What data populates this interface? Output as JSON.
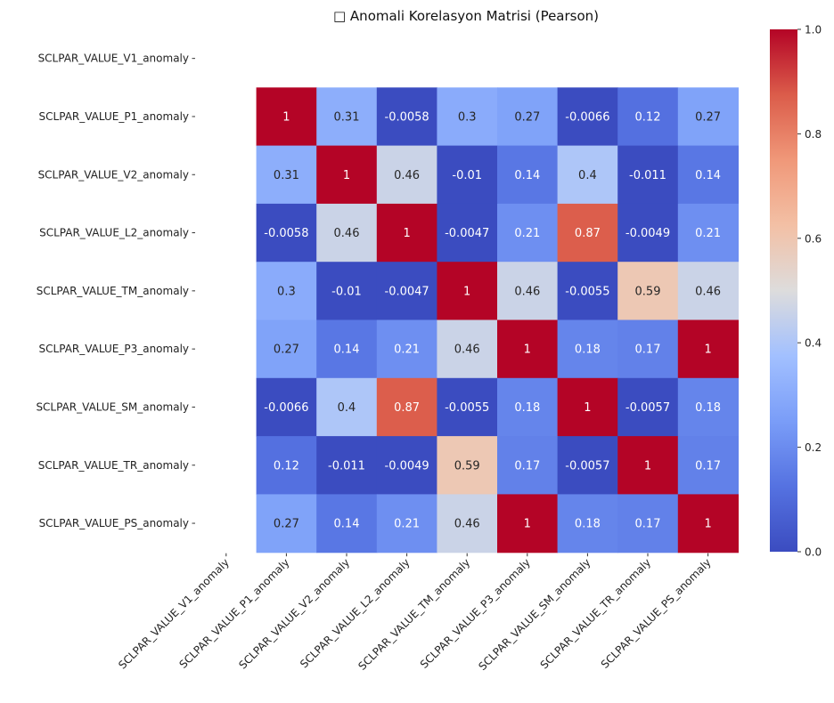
{
  "chart_data": {
    "type": "heatmap",
    "title": "□ Anomali Korelasyon Matrisi (Pearson)",
    "colormap": "coolwarm",
    "rows": [
      "SCLPAR_VALUE_V1_anomaly",
      "SCLPAR_VALUE_P1_anomaly",
      "SCLPAR_VALUE_V2_anomaly",
      "SCLPAR_VALUE_L2_anomaly",
      "SCLPAR_VALUE_TM_anomaly",
      "SCLPAR_VALUE_P3_anomaly",
      "SCLPAR_VALUE_SM_anomaly",
      "SCLPAR_VALUE_TR_anomaly",
      "SCLPAR_VALUE_PS_anomaly"
    ],
    "columns": [
      "SCLPAR_VALUE_V1_anomaly",
      "SCLPAR_VALUE_P1_anomaly",
      "SCLPAR_VALUE_V2_anomaly",
      "SCLPAR_VALUE_L2_anomaly",
      "SCLPAR_VALUE_TM_anomaly",
      "SCLPAR_VALUE_P3_anomaly",
      "SCLPAR_VALUE_SM_anomaly",
      "SCLPAR_VALUE_TR_anomaly",
      "SCLPAR_VALUE_PS_anomaly"
    ],
    "values": [
      [
        null,
        null,
        null,
        null,
        null,
        null,
        null,
        null,
        null
      ],
      [
        null,
        1,
        0.31,
        -0.0058,
        0.3,
        0.27,
        -0.0066,
        0.12,
        0.27
      ],
      [
        null,
        0.31,
        1,
        0.46,
        -0.01,
        0.14,
        0.4,
        -0.011,
        0.14
      ],
      [
        null,
        -0.0058,
        0.46,
        1,
        -0.0047,
        0.21,
        0.87,
        -0.0049,
        0.21
      ],
      [
        null,
        0.3,
        -0.01,
        -0.0047,
        1,
        0.46,
        -0.0055,
        0.59,
        0.46
      ],
      [
        null,
        0.27,
        0.14,
        0.21,
        0.46,
        1,
        0.18,
        0.17,
        1
      ],
      [
        null,
        -0.0066,
        0.4,
        0.87,
        -0.0055,
        0.18,
        1,
        -0.0057,
        0.18
      ],
      [
        null,
        0.12,
        -0.011,
        -0.0049,
        0.59,
        0.17,
        -0.0057,
        1,
        0.17
      ],
      [
        null,
        0.27,
        0.14,
        0.21,
        0.46,
        1,
        0.18,
        0.17,
        1
      ]
    ],
    "labels": [
      [
        "",
        "",
        "",
        "",
        "",
        "",
        "",
        "",
        ""
      ],
      [
        "",
        "1",
        "0.31",
        "-0.0058",
        "0.3",
        "0.27",
        "-0.0066",
        "0.12",
        "0.27"
      ],
      [
        "",
        "0.31",
        "1",
        "0.46",
        "-0.01",
        "0.14",
        "0.4",
        "-0.011",
        "0.14"
      ],
      [
        "",
        "-0.0058",
        "0.46",
        "1",
        "-0.0047",
        "0.21",
        "0.87",
        "-0.0049",
        "0.21"
      ],
      [
        "",
        "0.3",
        "-0.01",
        "-0.0047",
        "1",
        "0.46",
        "-0.0055",
        "0.59",
        "0.46"
      ],
      [
        "",
        "0.27",
        "0.14",
        "0.21",
        "0.46",
        "1",
        "0.18",
        "0.17",
        "1"
      ],
      [
        "",
        "-0.0066",
        "0.4",
        "0.87",
        "-0.0055",
        "0.18",
        "1",
        "-0.0057",
        "0.18"
      ],
      [
        "",
        "0.12",
        "-0.011",
        "-0.0049",
        "0.59",
        "0.17",
        "-0.0057",
        "1",
        "0.17"
      ],
      [
        "",
        "0.27",
        "0.14",
        "0.21",
        "0.46",
        "1",
        "0.18",
        "0.17",
        "1"
      ]
    ],
    "colorbar": {
      "range": [
        0.0,
        1.0
      ],
      "ticks": [
        "0.0",
        "0.2",
        "0.4",
        "0.6",
        "0.8",
        "1.0"
      ]
    }
  }
}
